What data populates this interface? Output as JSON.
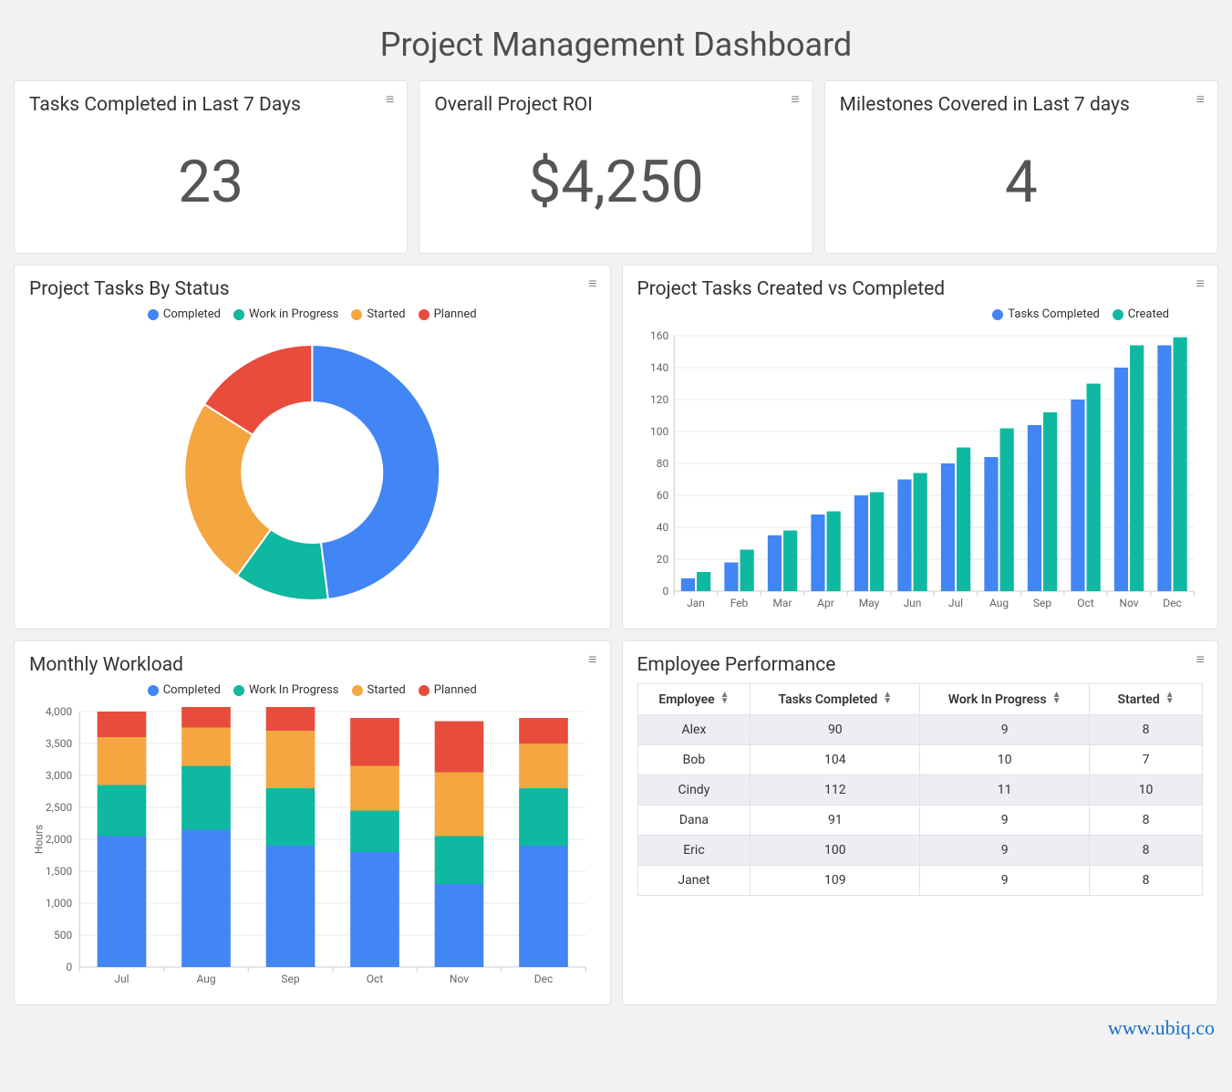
{
  "title": "Project Management Dashboard",
  "footer": "www.ubiq.co",
  "palette": {
    "blue": "#4285f4",
    "green": "#0fb8a0",
    "orange": "#f4a641",
    "red": "#e74c3c",
    "grid": "#e9e9e9",
    "axis": "#cdcdcd",
    "text": "#666666"
  },
  "kpis": [
    {
      "title": "Tasks Completed in Last 7 Days",
      "value": "23"
    },
    {
      "title": "Overall Project ROI",
      "value": "$4,250"
    },
    {
      "title": "Milestones Covered in Last 7 days",
      "value": "4"
    }
  ],
  "donut": {
    "title": "Project Tasks By Status",
    "type": "donut",
    "legend": [
      "Completed",
      "Work in Progress",
      "Started",
      "Planned"
    ],
    "colors": [
      "#4285f4",
      "#0fb8a0",
      "#f4a641",
      "#e74c3c"
    ],
    "values": [
      48,
      12,
      24,
      16
    ],
    "inner_radius_ratio": 0.55,
    "start_angle_deg": 0
  },
  "grouped_bar": {
    "title": "Project Tasks Created vs Completed",
    "type": "grouped-bar",
    "legend": [
      "Tasks Completed",
      "Created"
    ],
    "colors": [
      "#4285f4",
      "#0fb8a0"
    ],
    "categories": [
      "Jan",
      "Feb",
      "Mar",
      "Apr",
      "May",
      "Jun",
      "Jul",
      "Aug",
      "Sep",
      "Oct",
      "Nov",
      "Dec"
    ],
    "series": {
      "Tasks Completed": [
        8,
        18,
        35,
        48,
        60,
        70,
        80,
        84,
        104,
        120,
        140,
        154
      ],
      "Created": [
        12,
        26,
        38,
        50,
        62,
        74,
        90,
        102,
        112,
        130,
        154,
        159
      ]
    },
    "ylim": [
      0,
      160
    ],
    "ytick_step": 20,
    "grid_color": "#e9e9e9",
    "label_fontsize": 12
  },
  "stacked_bar": {
    "title": "Monthly Workload",
    "type": "stacked-bar",
    "legend": [
      "Completed",
      "Work In Progress",
      "Started",
      "Planned"
    ],
    "colors": [
      "#4285f4",
      "#0fb8a0",
      "#f4a641",
      "#e74c3c"
    ],
    "categories": [
      "Jul",
      "Aug",
      "Sep",
      "Oct",
      "Nov",
      "Dec"
    ],
    "stacks": {
      "Completed": [
        2050,
        2150,
        1900,
        1800,
        1300,
        1900
      ],
      "Work In Progress": [
        800,
        1000,
        900,
        650,
        750,
        900
      ],
      "Started": [
        750,
        600,
        900,
        700,
        1000,
        700
      ],
      "Planned": [
        400,
        400,
        400,
        750,
        800,
        400
      ]
    },
    "ylabel": "Hours",
    "ylim": [
      0,
      4000
    ],
    "ytick_step": 500,
    "grid_color": "#e9e9e9",
    "bar_width_ratio": 0.58
  },
  "table": {
    "title": "Employee Performance",
    "columns": [
      "Employee",
      "Tasks Completed",
      "Work In Progress",
      "Started"
    ],
    "rows": [
      [
        "Alex",
        "90",
        "9",
        "8"
      ],
      [
        "Bob",
        "104",
        "10",
        "7"
      ],
      [
        "Cindy",
        "112",
        "11",
        "10"
      ],
      [
        "Dana",
        "91",
        "9",
        "8"
      ],
      [
        "Eric",
        "100",
        "9",
        "8"
      ],
      [
        "Janet",
        "109",
        "9",
        "8"
      ]
    ],
    "col_widths": [
      "20%",
      "30%",
      "30%",
      "20%"
    ]
  }
}
